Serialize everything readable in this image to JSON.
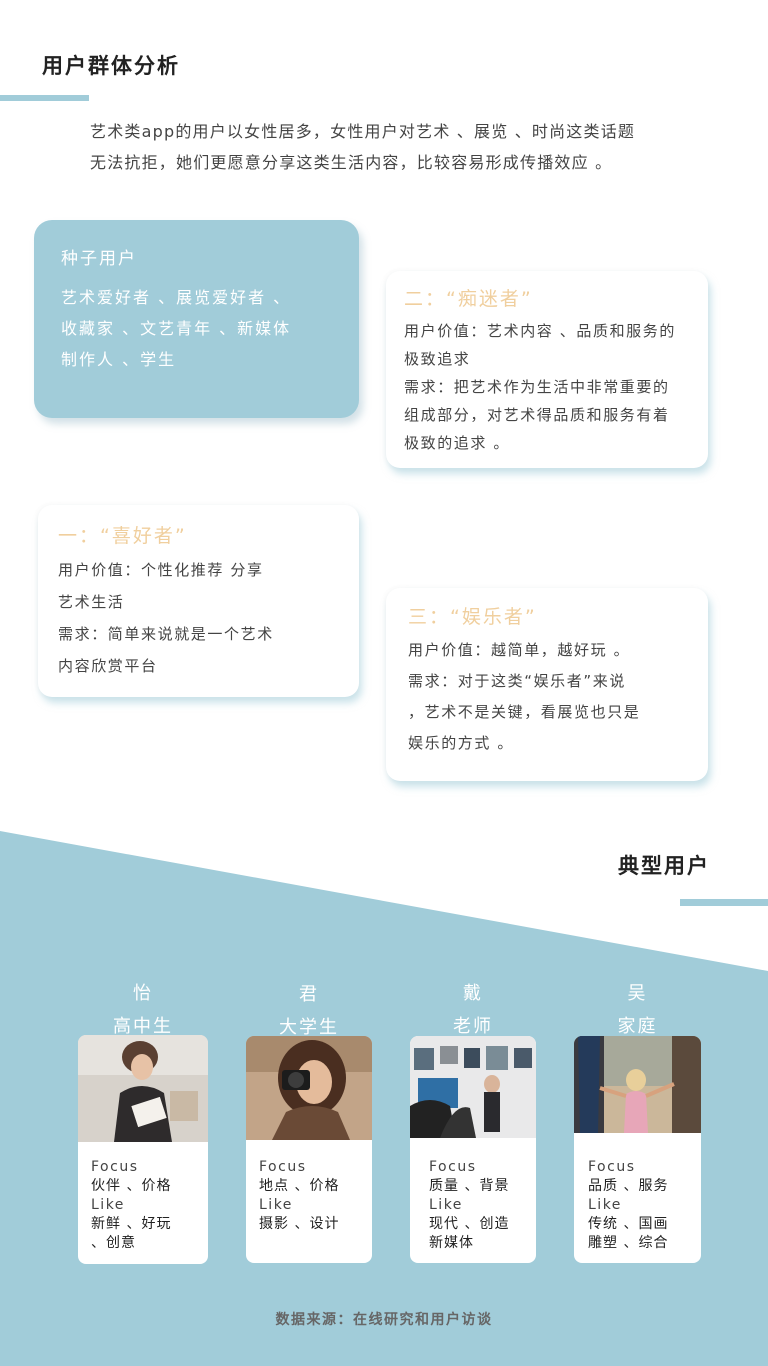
{
  "analysis": {
    "title": "用户群体分析",
    "intro_lines": [
      "艺术类app的用户以女性居多，女性用户对艺术 、展览 、时尚这类话题",
      "无法抗拒，她们更愿意分享这类生活内容，比较容易形成传播效应 。"
    ]
  },
  "seed": {
    "title": "种子用户",
    "lines": [
      "艺术爱好者 、展览爱好者 、",
      "收藏家 、文艺青年 、新媒体",
      "制作人 、学生"
    ]
  },
  "personas": [
    {
      "heading": "二：“痴迷者”",
      "lines": [
        "用户价值：艺术内容 、品质和服务的",
        "极致追求",
        "需求：把艺术作为生活中非常重要的",
        "组成部分，对艺术得品质和服务有着",
        "极致的追求 。"
      ]
    },
    {
      "heading": "一：“喜好者”",
      "lines": [
        "用户价值：个性化推荐  分享",
        "艺术生活",
        "需求：简单来说就是一个艺术",
        "内容欣赏平台"
      ]
    },
    {
      "heading": "三：“娱乐者”",
      "lines": [
        "用户价值：越简单，越好玩 。",
        "需求：对于这类“娱乐者”来说",
        "，艺术不是关键，看展览也只是",
        "娱乐的方式 。"
      ]
    }
  ],
  "typical": {
    "title": "典型用户",
    "users": [
      {
        "name": "怡",
        "role": "高中生",
        "focus_label": "Focus",
        "focus": "伙伴 、价格",
        "like_label": "Like",
        "like": [
          "新鲜 、好玩",
          "、创意"
        ]
      },
      {
        "name": "君",
        "role": "大学生",
        "focus_label": "Focus",
        "focus": "地点 、价格",
        "like_label": "Like",
        "like": [
          "摄影 、设计"
        ]
      },
      {
        "name": "戴",
        "role": "老师",
        "focus_label": "Focus",
        "focus": "质量 、背景",
        "like_label": "Like",
        "like": [
          "现代 、创造",
          "新媒体"
        ]
      },
      {
        "name": "吴",
        "role": "家庭",
        "focus_label": "Focus",
        "focus": "品质 、服务",
        "like_label": "Like",
        "like": [
          "传统 、国画",
          "雕塑 、综合"
        ]
      }
    ]
  },
  "source": "数据来源：在线研究和用户访谈",
  "colors": {
    "accent": "#a1ccd9",
    "heading_gold": "#f0cf9e"
  }
}
